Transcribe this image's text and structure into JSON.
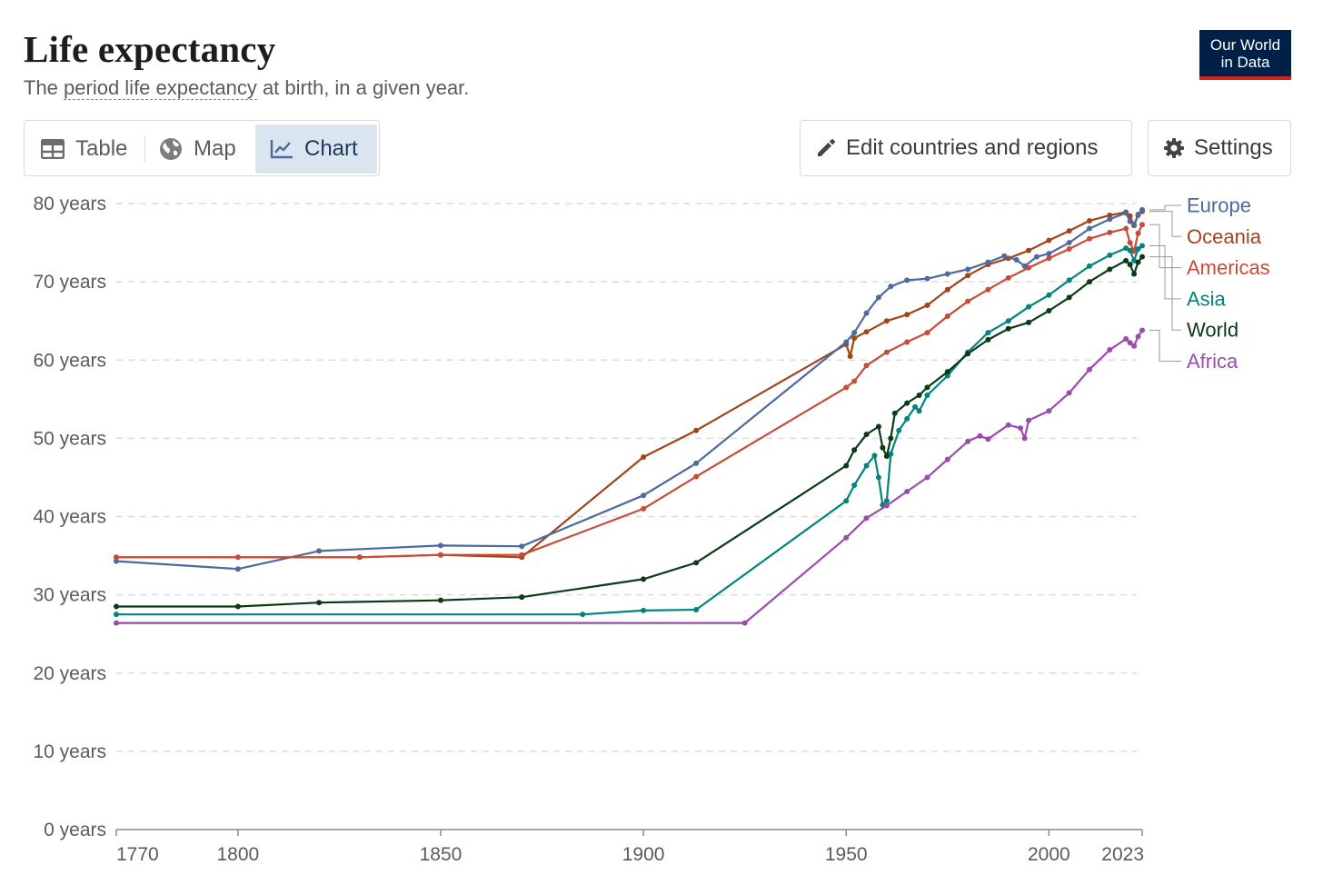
{
  "header": {
    "title": "Life expectancy",
    "subtitle_prefix": "The ",
    "subtitle_term": "period life expectancy",
    "subtitle_suffix": " at birth, in a given year.",
    "logo_line1": "Our World",
    "logo_line2": "in Data"
  },
  "tabs": [
    {
      "label": "Table",
      "icon": "table-icon"
    },
    {
      "label": "Map",
      "icon": "globe-icon"
    },
    {
      "label": "Chart",
      "icon": "line-chart-icon",
      "active": true
    }
  ],
  "actions": {
    "edit_label": "Edit countries and regions",
    "settings_label": "Settings"
  },
  "colors": {
    "accent": "#002147",
    "logo_underline": "#ce261e",
    "active_tab_bg": "#dbe5f0"
  },
  "chart_data": {
    "type": "line",
    "title": "Life expectancy",
    "ylim": [
      0,
      80
    ],
    "xlim": [
      1770,
      2023
    ],
    "y_ticks": [
      {
        "value": 0,
        "label": "0 years"
      },
      {
        "value": 10,
        "label": "10 years"
      },
      {
        "value": 20,
        "label": "20 years"
      },
      {
        "value": 30,
        "label": "30 years"
      },
      {
        "value": 40,
        "label": "40 years"
      },
      {
        "value": 50,
        "label": "50 years"
      },
      {
        "value": 60,
        "label": "60 years"
      },
      {
        "value": 70,
        "label": "70 years"
      },
      {
        "value": 80,
        "label": "80 years"
      }
    ],
    "x_ticks": [
      {
        "value": 1770,
        "label": "1770"
      },
      {
        "value": 1800,
        "label": "1800"
      },
      {
        "value": 1850,
        "label": "1850"
      },
      {
        "value": 1900,
        "label": "1900"
      },
      {
        "value": 1950,
        "label": "1950"
      },
      {
        "value": 2000,
        "label": "2000"
      },
      {
        "value": 2023,
        "label": "2023"
      }
    ],
    "grid": "horizontal-dashed",
    "legend": "right",
    "series": [
      {
        "name": "Oceania",
        "color": "#a2441b",
        "points": [
          [
            1770,
            34.8
          ],
          [
            1830,
            34.8
          ],
          [
            1850,
            35.1
          ],
          [
            1870,
            34.8
          ],
          [
            1900,
            47.6
          ],
          [
            1913,
            51.0
          ],
          [
            1950,
            62.0
          ],
          [
            1951,
            60.5
          ],
          [
            1952,
            62.8
          ],
          [
            1955,
            63.6
          ],
          [
            1960,
            65.0
          ],
          [
            1965,
            65.8
          ],
          [
            1970,
            67.0
          ],
          [
            1975,
            69.0
          ],
          [
            1980,
            70.8
          ],
          [
            1985,
            72.2
          ],
          [
            1990,
            73.0
          ],
          [
            1995,
            74.0
          ],
          [
            2000,
            75.3
          ],
          [
            2005,
            76.5
          ],
          [
            2010,
            77.8
          ],
          [
            2015,
            78.5
          ],
          [
            2019,
            78.9
          ],
          [
            2020,
            78.4
          ],
          [
            2021,
            77.2
          ],
          [
            2022,
            78.5
          ],
          [
            2023,
            79.0
          ]
        ]
      },
      {
        "name": "Europe",
        "color": "#4c6a9c",
        "points": [
          [
            1770,
            34.3
          ],
          [
            1800,
            33.3
          ],
          [
            1820,
            35.6
          ],
          [
            1850,
            36.3
          ],
          [
            1870,
            36.2
          ],
          [
            1900,
            42.7
          ],
          [
            1913,
            46.8
          ],
          [
            1950,
            62.3
          ],
          [
            1952,
            63.5
          ],
          [
            1955,
            66.0
          ],
          [
            1958,
            68.0
          ],
          [
            1961,
            69.4
          ],
          [
            1965,
            70.2
          ],
          [
            1970,
            70.4
          ],
          [
            1975,
            71.0
          ],
          [
            1980,
            71.6
          ],
          [
            1985,
            72.5
          ],
          [
            1989,
            73.3
          ],
          [
            1992,
            72.8
          ],
          [
            1994,
            72.0
          ],
          [
            1997,
            73.2
          ],
          [
            2000,
            73.6
          ],
          [
            2005,
            75.0
          ],
          [
            2010,
            76.8
          ],
          [
            2015,
            78.0
          ],
          [
            2019,
            78.8
          ],
          [
            2020,
            77.7
          ],
          [
            2021,
            77.3
          ],
          [
            2022,
            78.6
          ],
          [
            2023,
            79.2
          ]
        ]
      },
      {
        "name": "Americas",
        "color": "#c64b3a",
        "points": [
          [
            1770,
            34.8
          ],
          [
            1800,
            34.8
          ],
          [
            1830,
            34.8
          ],
          [
            1850,
            35.1
          ],
          [
            1870,
            35.1
          ],
          [
            1900,
            41.0
          ],
          [
            1913,
            45.1
          ],
          [
            1950,
            56.5
          ],
          [
            1952,
            57.3
          ],
          [
            1955,
            59.3
          ],
          [
            1960,
            61.0
          ],
          [
            1965,
            62.3
          ],
          [
            1970,
            63.5
          ],
          [
            1975,
            65.6
          ],
          [
            1980,
            67.5
          ],
          [
            1985,
            69.0
          ],
          [
            1990,
            70.5
          ],
          [
            1995,
            71.8
          ],
          [
            2000,
            73.0
          ],
          [
            2005,
            74.2
          ],
          [
            2010,
            75.5
          ],
          [
            2015,
            76.3
          ],
          [
            2019,
            76.8
          ],
          [
            2020,
            75.0
          ],
          [
            2021,
            73.9
          ],
          [
            2022,
            76.2
          ],
          [
            2023,
            77.3
          ]
        ]
      },
      {
        "name": "Asia",
        "color": "#00847e",
        "points": [
          [
            1770,
            27.5
          ],
          [
            1885,
            27.5
          ],
          [
            1900,
            28.0
          ],
          [
            1913,
            28.1
          ],
          [
            1950,
            42.0
          ],
          [
            1952,
            44.0
          ],
          [
            1955,
            46.5
          ],
          [
            1957,
            47.8
          ],
          [
            1958,
            45.0
          ],
          [
            1959,
            41.5
          ],
          [
            1960,
            42.0
          ],
          [
            1961,
            48.0
          ],
          [
            1963,
            51.0
          ],
          [
            1965,
            52.5
          ],
          [
            1967,
            54.0
          ],
          [
            1968,
            53.5
          ],
          [
            1970,
            55.5
          ],
          [
            1975,
            58.0
          ],
          [
            1980,
            61.0
          ],
          [
            1985,
            63.5
          ],
          [
            1990,
            65.0
          ],
          [
            1995,
            66.8
          ],
          [
            2000,
            68.3
          ],
          [
            2005,
            70.2
          ],
          [
            2010,
            72.0
          ],
          [
            2015,
            73.4
          ],
          [
            2019,
            74.3
          ],
          [
            2020,
            74.0
          ],
          [
            2021,
            72.7
          ],
          [
            2022,
            74.2
          ],
          [
            2023,
            74.6
          ]
        ]
      },
      {
        "name": "World",
        "color": "#0a3b14",
        "points": [
          [
            1770,
            28.5
          ],
          [
            1800,
            28.5
          ],
          [
            1820,
            29.0
          ],
          [
            1850,
            29.3
          ],
          [
            1870,
            29.7
          ],
          [
            1900,
            32.0
          ],
          [
            1913,
            34.1
          ],
          [
            1950,
            46.5
          ],
          [
            1952,
            48.5
          ],
          [
            1955,
            50.5
          ],
          [
            1958,
            51.5
          ],
          [
            1959,
            48.8
          ],
          [
            1960,
            47.7
          ],
          [
            1961,
            50.0
          ],
          [
            1962,
            53.2
          ],
          [
            1965,
            54.5
          ],
          [
            1968,
            55.5
          ],
          [
            1970,
            56.5
          ],
          [
            1975,
            58.5
          ],
          [
            1980,
            60.8
          ],
          [
            1985,
            62.6
          ],
          [
            1990,
            64.0
          ],
          [
            1995,
            64.8
          ],
          [
            2000,
            66.3
          ],
          [
            2005,
            68.0
          ],
          [
            2010,
            70.0
          ],
          [
            2015,
            71.6
          ],
          [
            2019,
            72.7
          ],
          [
            2020,
            72.2
          ],
          [
            2021,
            71.0
          ],
          [
            2022,
            72.5
          ],
          [
            2023,
            73.2
          ]
        ]
      },
      {
        "name": "Africa",
        "color": "#9a4cad",
        "points": [
          [
            1770,
            26.4
          ],
          [
            1925,
            26.4
          ],
          [
            1950,
            37.3
          ],
          [
            1955,
            39.8
          ],
          [
            1960,
            41.4
          ],
          [
            1965,
            43.2
          ],
          [
            1970,
            45.0
          ],
          [
            1975,
            47.3
          ],
          [
            1980,
            49.6
          ],
          [
            1983,
            50.3
          ],
          [
            1985,
            49.9
          ],
          [
            1990,
            51.7
          ],
          [
            1993,
            51.3
          ],
          [
            1994,
            50.0
          ],
          [
            1995,
            52.3
          ],
          [
            2000,
            53.5
          ],
          [
            2005,
            55.8
          ],
          [
            2010,
            58.8
          ],
          [
            2015,
            61.3
          ],
          [
            2019,
            62.7
          ],
          [
            2020,
            62.2
          ],
          [
            2021,
            61.8
          ],
          [
            2022,
            63.0
          ],
          [
            2023,
            63.8
          ]
        ]
      }
    ]
  }
}
